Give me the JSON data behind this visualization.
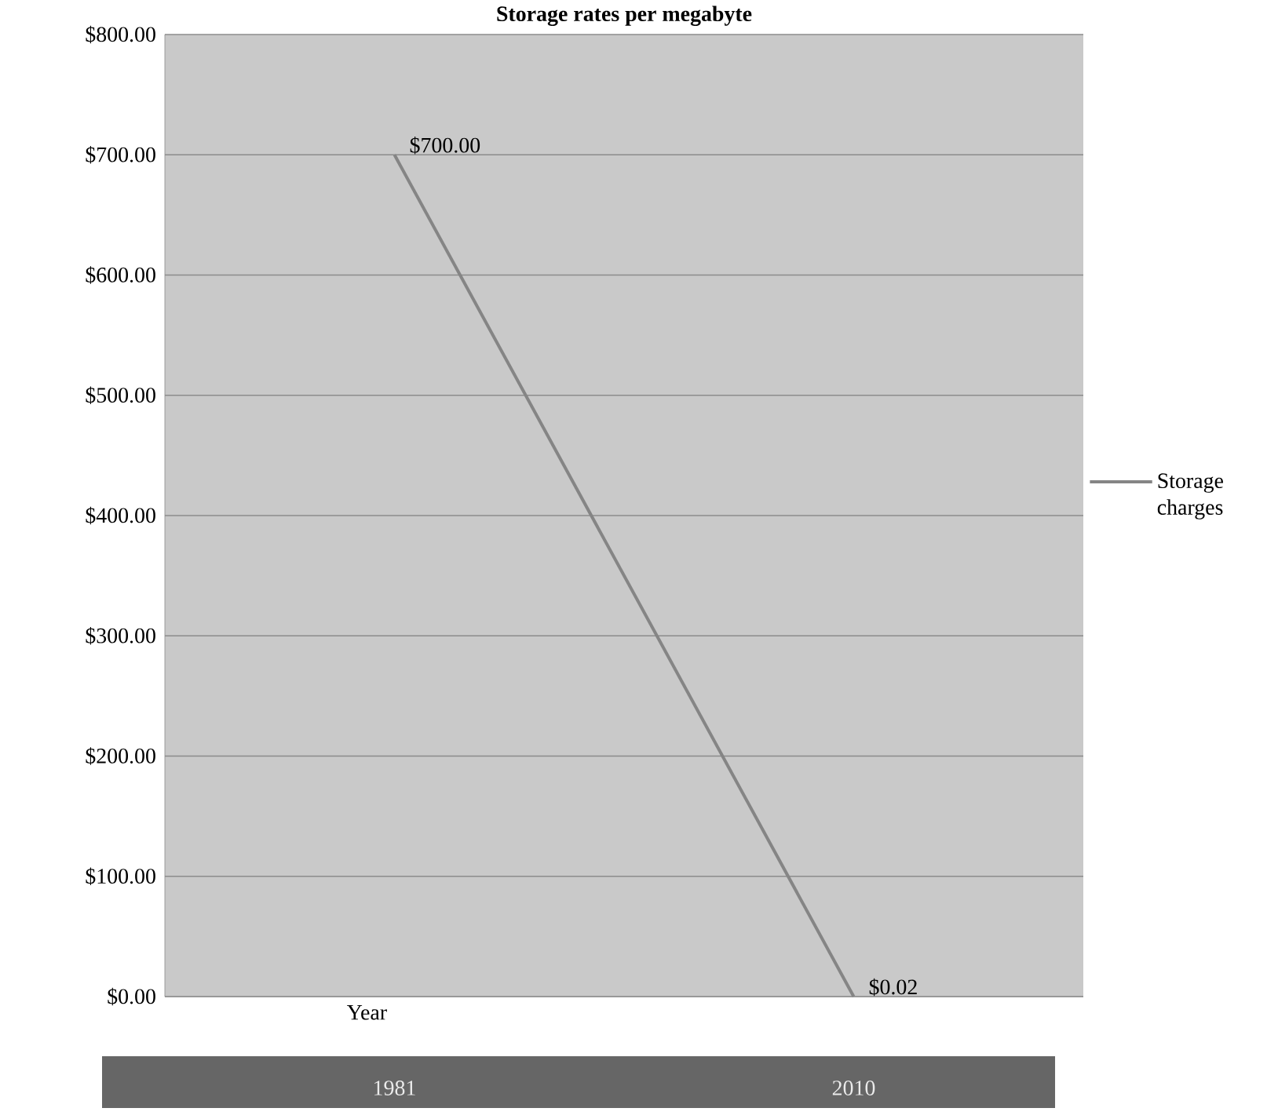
{
  "chart_data": {
    "type": "line",
    "title": "Storage rates per megabyte",
    "xlabel": "Year",
    "categories": [
      "1981",
      "2010"
    ],
    "series": [
      {
        "name": "Storage charges",
        "color": "#858585",
        "values": [
          700,
          0.02
        ],
        "value_labels": [
          "$700.00",
          "$0.02"
        ]
      }
    ],
    "ylim": [
      0,
      800
    ],
    "yticks": [
      {
        "value": 0,
        "label": "$0.00"
      },
      {
        "value": 100,
        "label": "$100.00"
      },
      {
        "value": 200,
        "label": "$200.00"
      },
      {
        "value": 300,
        "label": "$300.00"
      },
      {
        "value": 400,
        "label": "$400.00"
      },
      {
        "value": 500,
        "label": "$500.00"
      },
      {
        "value": 600,
        "label": "$600.00"
      },
      {
        "value": 700,
        "label": "$700.00"
      },
      {
        "value": 800,
        "label": "$800.00"
      }
    ],
    "grid": "y",
    "legend": "right",
    "marker": "none",
    "line_style": "solid"
  }
}
